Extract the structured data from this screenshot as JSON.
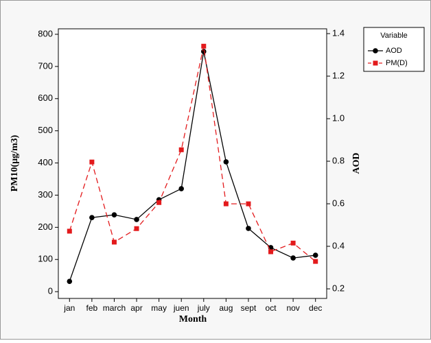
{
  "chart_data": {
    "type": "line",
    "categories": [
      "jan",
      "feb",
      "march",
      "apr",
      "may",
      "juen",
      "july",
      "aug",
      "sept",
      "oct",
      "nov",
      "dec"
    ],
    "x_label": "Month",
    "y_label": "PM10(µg/m3)",
    "y2_label": "AOD",
    "legend_title": "Variable",
    "series": [
      {
        "name": "AOD",
        "color": "#000000",
        "axis": "y2",
        "dashed": false,
        "marker": "circle",
        "values": [
          0.235,
          0.535,
          0.548,
          0.526,
          0.619,
          0.671,
          1.316,
          0.797,
          0.484,
          0.394,
          0.345,
          0.358
        ]
      },
      {
        "name": "PM(D)",
        "color": "#e31a1c",
        "axis": "y",
        "dashed": true,
        "marker": "square",
        "values": [
          188,
          403,
          154,
          196,
          277,
          441,
          763,
          273,
          273,
          124,
          151,
          94
        ]
      }
    ],
    "ylim": [
      -21,
      817
    ],
    "yticks": [
      0,
      100,
      200,
      300,
      400,
      500,
      600,
      700,
      800
    ],
    "y2lim": [
      0.155,
      1.4226
    ],
    "y2ticks": [
      0.2,
      0.4,
      0.6,
      0.8,
      1.0,
      1.2,
      1.4
    ],
    "legend": "upper right outside"
  }
}
